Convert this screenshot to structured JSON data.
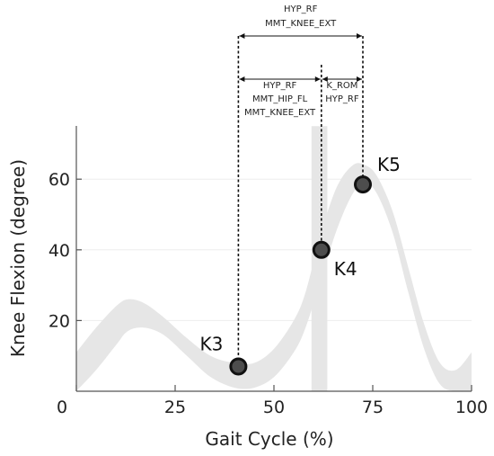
{
  "chart_data": {
    "type": "line",
    "title": "",
    "xlabel": "Gait Cycle (%)",
    "ylabel": "Knee Flexion (degree)",
    "xlim": [
      0,
      100
    ],
    "ylim": [
      0,
      75
    ],
    "xticks": [
      "0",
      "25",
      "50",
      "75",
      "100"
    ],
    "yticks": [
      "20",
      "40",
      "60"
    ],
    "band": {
      "x": [
        0,
        5,
        10,
        13,
        17,
        22,
        28,
        34,
        40,
        45,
        50,
        55,
        58,
        62,
        66,
        70,
        73,
        76,
        80,
        84,
        88,
        92,
        96,
        100
      ],
      "lower": [
        0,
        6,
        13,
        17,
        18,
        16,
        10,
        4,
        1,
        1,
        4,
        11,
        18,
        32,
        46,
        56,
        59,
        56,
        45,
        28,
        12,
        2,
        0,
        0
      ],
      "upper": [
        11,
        18,
        24,
        26,
        25,
        21,
        15,
        10,
        8,
        8,
        12,
        20,
        28,
        45,
        58,
        64,
        64,
        61,
        51,
        35,
        19,
        8,
        6,
        11
      ]
    },
    "vband": {
      "x": [
        59.5,
        63.5
      ],
      "y": [
        0,
        75
      ]
    },
    "points": [
      {
        "label": "K3",
        "x": 41,
        "y": 7
      },
      {
        "label": "K4",
        "x": 62,
        "y": 40
      },
      {
        "label": "K5",
        "x": 72.5,
        "y": 58.5
      }
    ],
    "spans": [
      {
        "from": 41,
        "to": 72.5,
        "lines": [
          "HYP_RF",
          "MMT_KNEE_EXT"
        ]
      },
      {
        "from": 41,
        "to": 62,
        "lines": [
          "HYP_RF",
          "MMT_HIP_FL",
          "MMT_KNEE_EXT"
        ]
      },
      {
        "from": 62,
        "to": 72.5,
        "lines": [
          "K_ROM",
          "HYP_RF"
        ]
      }
    ],
    "colors": {
      "band": "#e6e6e6",
      "point_fill": "#4d4d4d",
      "point_edge": "#111111"
    }
  }
}
